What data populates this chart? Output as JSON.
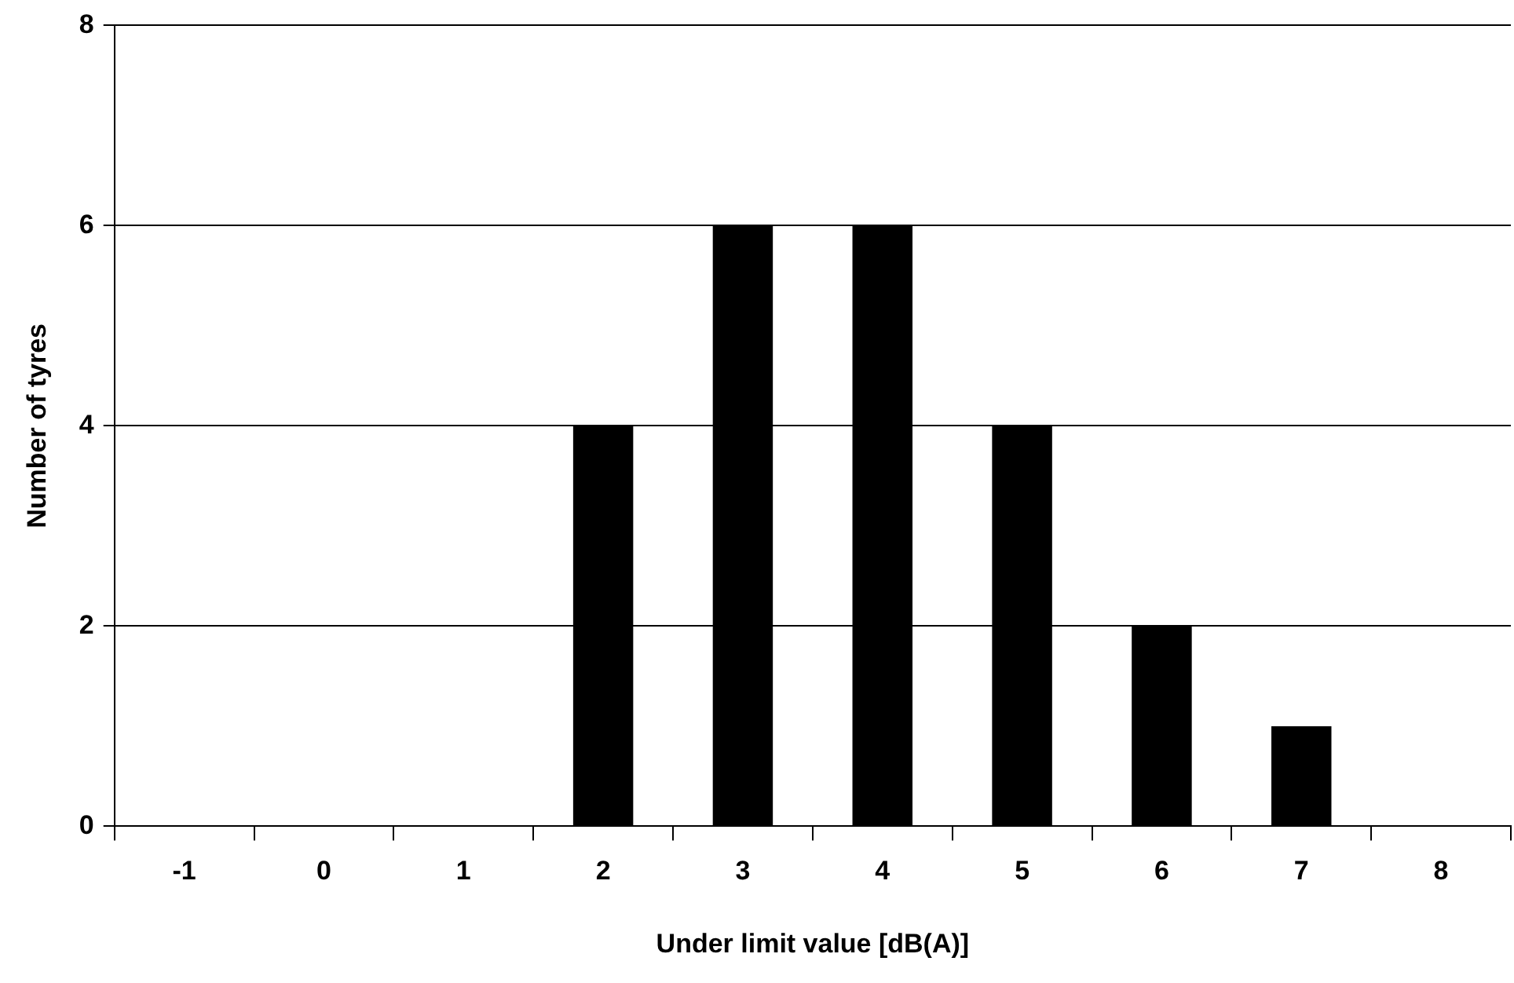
{
  "chart_data": {
    "type": "bar",
    "xlabel": "Under limit value [dB(A)]",
    "ylabel": "Number of tyres",
    "categories": [
      "-1",
      "0",
      "1",
      "2",
      "3",
      "4",
      "5",
      "6",
      "7",
      "8"
    ],
    "values": [
      0,
      0,
      0,
      4,
      6,
      6,
      4,
      2,
      1,
      0
    ],
    "color": "#000000",
    "ylim": [
      0,
      8
    ],
    "yticks": [
      0,
      2,
      4,
      6,
      8
    ],
    "grid": "y",
    "legend": false
  }
}
